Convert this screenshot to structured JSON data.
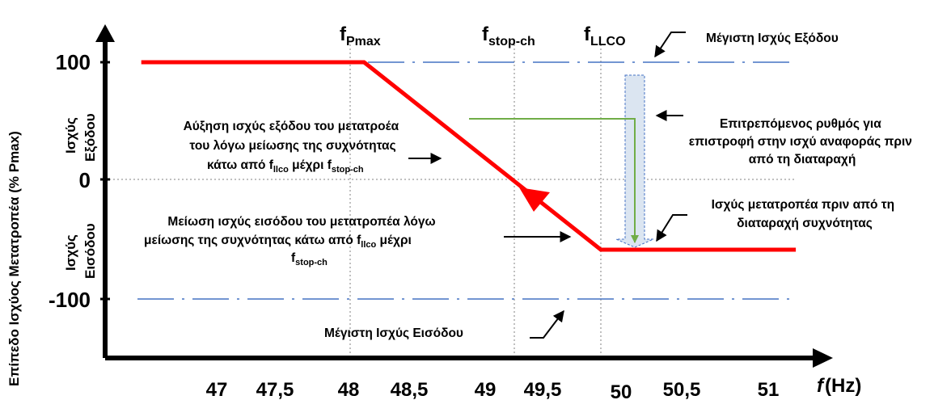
{
  "chart_data": {
    "type": "line",
    "xlabel_symbol": "f",
    "xlabel_unit": "(Hz)",
    "ylabel": "Επίπεδο Ισχύος Μετατροπέα (% Pmax)",
    "x_ticks": [
      "47",
      "47,5",
      "48",
      "48,5",
      "49",
      "49,5",
      "50",
      "50,5",
      "51"
    ],
    "y_ticks": [
      "100",
      "0",
      "-100"
    ],
    "xlim": [
      46.45,
      51.2
    ],
    "ylim": [
      -125,
      150
    ],
    "series": [
      {
        "color": "#ff0000",
        "x": [
          46.45,
          48.05,
          49.75,
          51.15
        ],
        "y": [
          100,
          100,
          -60,
          -60
        ]
      }
    ],
    "reference_lines": {
      "max_output_y": 100,
      "max_input_y": -100,
      "zero_y": 0,
      "f_pmax_x": 47.95,
      "f_stop_ch_x": 49.12,
      "f_llco_x": 49.75
    },
    "vertical_markers": [
      {
        "main": "f",
        "sub": "Pmax"
      },
      {
        "main": "f",
        "sub": "stop-ch"
      },
      {
        "main": "f",
        "sub": "LLCO"
      }
    ],
    "region_labels": {
      "output_line1": "Ισχύς",
      "output_line2": "Εξόδου",
      "input_line1": "Ισχύς",
      "input_line2": "Εισόδου"
    },
    "annotations": {
      "max_output": "Μέγιστη Ισχύς Εξόδου",
      "max_input": "Μέγιστη Ισχύς Εισόδου",
      "allowed_rate": [
        "Επιτρεπόμενος ρυθμός για",
        "επιστροφή στην ισχύ αναφοράς πριν",
        "από τη διαταραχή"
      ],
      "power_before": [
        "Ισχύς μετατροπέα πριν από τη",
        "διαταραχή συχνότητας"
      ],
      "increase_line1": "Αύξηση ισχύς εξόδου του μετατροέα",
      "increase_line2": "του λόγω μείωσης της συχνότητας",
      "increase_line3_pre": "κάτω από f",
      "increase_line3_sub1": "llco",
      "increase_line3_mid": " μέχρι f",
      "increase_line3_sub2": "stop-ch",
      "decrease_line1": "Μείωση ισχύς εισόδου του μετατροπέα λόγω",
      "decrease_line2_pre": "μείωσης της συχνότητας κάτω από f",
      "decrease_line2_sub": "llco",
      "decrease_line2_post": " μέχρι",
      "decrease_line3_main": "f",
      "decrease_line3_sub": "stop-ch"
    },
    "colors": {
      "series": "#ff0000",
      "reference_dash": "#4472c4",
      "green_path": "#70ad47",
      "guide_grey": "#808080",
      "shaded_arrow": "#dbe5f1"
    }
  }
}
